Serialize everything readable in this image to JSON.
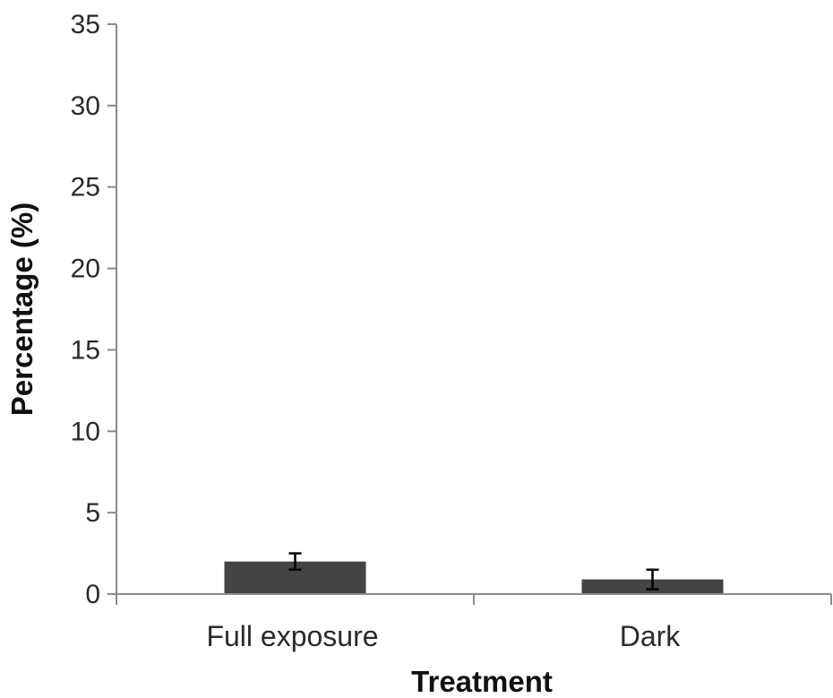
{
  "chart_data": {
    "type": "bar",
    "categories": [
      "Full exposure",
      "Dark"
    ],
    "values": [
      2.0,
      0.9
    ],
    "error": [
      0.5,
      0.6
    ],
    "xlabel": "Treatment",
    "ylabel": "Percentage (%)",
    "ylim": [
      0,
      35
    ],
    "yticks": [
      0,
      5,
      10,
      15,
      20,
      25,
      30,
      35
    ],
    "grid": false,
    "legend": "none",
    "bar_color": "#444444"
  }
}
